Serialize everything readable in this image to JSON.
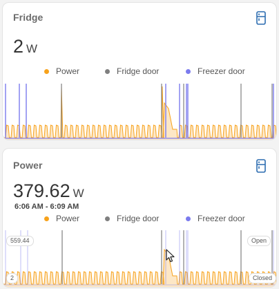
{
  "cards": [
    {
      "title": "Fridge",
      "icon": "fridge-icon",
      "value": "2",
      "unit": "W",
      "legend": [
        {
          "label": "Power",
          "color": "#f7a21b"
        },
        {
          "label": "Fridge door",
          "color": "#7f7f7f"
        },
        {
          "label": "Freezer door",
          "color": "#7b7bee"
        }
      ]
    },
    {
      "title": "Power",
      "icon": "fridge-icon",
      "value": "379.62",
      "unit": "W",
      "time_range": "6:06 AM - 6:09 AM",
      "legend": [
        {
          "label": "Power",
          "color": "#f7a21b"
        },
        {
          "label": "Fridge door",
          "color": "#7f7f7f"
        },
        {
          "label": "Freezer door",
          "color": "#7b7bee"
        }
      ],
      "chart_labels": {
        "max": "559.44",
        "min": "2",
        "open": "Open",
        "closed": "Closed"
      }
    }
  ],
  "colors": {
    "power": "#f7a21b",
    "power_fill": "#fde7c6",
    "fridge_door": "#7f7f7f",
    "freezer_door": "#7b7bee",
    "icon": "#2b6cb0"
  }
}
